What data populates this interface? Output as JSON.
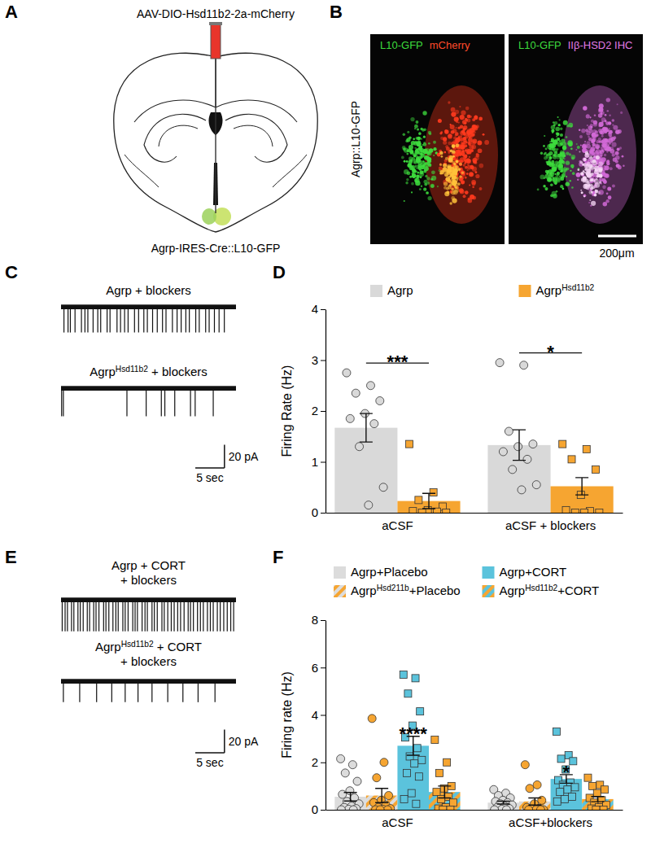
{
  "panel_a": {
    "panel": "A",
    "injection_label": "AAV-DIO-Hsd11b2-2a-mCherry",
    "mouse_label": "Agrp-IRES-Cre::L10-GFP"
  },
  "panel_b": {
    "panel": "B",
    "row_label": "Agrp::L10-GFP",
    "left": [
      "L10-GFP",
      "mCherry"
    ],
    "right": [
      "L10-GFP",
      "IIβ-HSD2 IHC"
    ],
    "scale_bar": "200μm"
  },
  "chart_data": [
    {
      "type": "trace",
      "panel": "C",
      "tick_labels": false,
      "xlim": [
        0,
        30
      ],
      "ylim": [
        -30,
        5
      ],
      "noise": 2,
      "scale_bar": {
        "x": 5,
        "x_label": "5 sec",
        "y": 20,
        "y_label": "20 pA"
      },
      "traces": [
        {
          "label": [
            "Agrp + blockers"
          ],
          "spike_amplitude": -22,
          "spike_times": [
            0.5,
            1.2,
            1.6,
            2.4,
            3.5,
            4.1,
            4.6,
            5.5,
            6.3,
            6.8,
            7.9,
            8.4,
            9.6,
            10.2,
            10.9,
            11.5,
            12.6,
            13.3,
            14.2,
            14.8,
            15.7,
            16.5,
            17.4,
            18.0,
            19.1,
            19.9,
            20.6,
            21.4,
            22.0,
            23.1,
            23.7,
            24.8,
            25.4,
            26.3,
            27.1,
            28.0
          ]
        },
        {
          "label": [
            "AgrpHsd11b2 + blockers"
          ],
          "spike_amplitude": -24,
          "spike_times": [
            0.1,
            0.4,
            11.3,
            14.6,
            17.2,
            17.8,
            19.5,
            22.2,
            23.0,
            26.1
          ]
        }
      ]
    },
    {
      "type": "bar",
      "panel": "D",
      "legend": "top",
      "y_label": "Firing Rate (Hz)",
      "categories": [
        "aCSF",
        "aCSF + blockers"
      ],
      "ylim": [
        0,
        4
      ],
      "yticks": [
        0,
        1,
        2,
        3,
        4
      ],
      "series": [
        {
          "name": "Agrp",
          "color": "#d9d9d9",
          "marker": "circle",
          "values": [
            1.67,
            1.33
          ],
          "errors": [
            0.28,
            0.3
          ],
          "points": [
            [
              2.75,
              2.5,
              2.35,
              2.2,
              1.95,
              1.85,
              1.75,
              1.3,
              0.5,
              0.15
            ],
            [
              2.95,
              2.9,
              1.6,
              1.35,
              1.3,
              1.2,
              1.05,
              0.85,
              0.55,
              0.45
            ]
          ]
        },
        {
          "name": "AgrpHsd11b2",
          "color": "#f6a531",
          "marker": "square",
          "values": [
            0.23,
            0.52
          ],
          "errors": [
            0.15,
            0.17
          ],
          "points": [
            [
              1.35,
              0.4,
              0.25,
              0.12,
              0.05,
              0.03,
              0.02,
              0,
              0
            ],
            [
              1.35,
              1.25,
              1.05,
              0.85,
              0.35,
              0.05,
              0.03,
              0,
              0,
              0
            ]
          ]
        }
      ],
      "annotations": [
        {
          "text": "***",
          "category": 0,
          "series": [
            0,
            1
          ]
        },
        {
          "text": "*",
          "category": 1,
          "series": [
            0,
            1
          ]
        }
      ]
    },
    {
      "type": "trace",
      "panel": "E",
      "tick_labels": false,
      "xlim": [
        0,
        30
      ],
      "ylim": [
        -30,
        5
      ],
      "noise": 2,
      "scale_bar": {
        "x": 5,
        "x_label": "5 sec",
        "y": 20,
        "y_label": "20 pA"
      },
      "traces": [
        {
          "label": [
            "Agrp + CORT",
            "+ blockers"
          ],
          "spike_amplitude": -27,
          "spike_times": [
            0.2,
            0.7,
            1.1,
            1.8,
            2.2,
            2.9,
            3.3,
            3.8,
            4.5,
            4.9,
            5.6,
            6.0,
            6.5,
            7.3,
            7.7,
            8.2,
            8.9,
            9.4,
            9.8,
            10.6,
            11.0,
            11.5,
            12.3,
            12.7,
            13.1,
            13.9,
            14.4,
            14.8,
            15.6,
            16.0,
            16.5,
            17.3,
            17.7,
            18.3,
            18.9,
            19.4,
            20.0,
            20.5,
            21.1,
            21.8,
            22.2,
            22.7,
            23.4,
            23.9,
            24.4,
            25.1,
            25.6,
            26.1,
            26.8,
            27.3,
            27.9,
            28.5,
            29.1,
            29.6
          ]
        },
        {
          "label": [
            "AgrpHsd11b2 + CORT",
            "+ blockers"
          ],
          "spike_amplitude": -18,
          "spike_times": [
            0.4,
            3.2,
            6.1,
            8.7,
            11.0,
            13.2,
            15.6,
            18.3,
            20.9,
            23.5,
            26.4
          ]
        }
      ]
    },
    {
      "type": "bar",
      "panel": "F",
      "legend": "top",
      "y_label": "Firing rate (Hz)",
      "categories": [
        "aCSF",
        "aCSF+blockers"
      ],
      "ylim": [
        0,
        8
      ],
      "yticks": [
        0,
        2,
        4,
        6,
        8
      ],
      "series": [
        {
          "name": "Agrp+Placebo",
          "color": "#dcdcdc",
          "marker": "circle",
          "values": [
            0.55,
            0.3
          ],
          "errors": [
            0.18,
            0.06
          ],
          "points": [
            [
              2.15,
              1.9,
              1.55,
              1.2,
              0.8,
              0.65,
              0.5,
              0.35,
              0.25,
              0.15,
              0.1,
              0.05,
              0.02,
              0,
              0
            ],
            [
              0.85,
              0.7,
              0.6,
              0.5,
              0.4,
              0.35,
              0.3,
              0.25,
              0.2,
              0.15,
              0.1,
              0.05,
              0.02,
              0,
              0
            ]
          ]
        },
        {
          "name": "AgrpHsd211b+Placebo",
          "color": "#f6a531",
          "marker": "circle",
          "line_style": "hatched",
          "values": [
            0.6,
            0.35
          ],
          "errors": [
            0.3,
            0.15
          ],
          "points": [
            [
              3.85,
              2.0,
              1.35,
              0.6,
              0.4,
              0.3,
              0.2,
              0.1,
              0.05,
              0.02,
              0,
              0,
              0
            ],
            [
              1.9,
              1.05,
              0.9,
              0.4,
              0.25,
              0.1,
              0.05,
              0.02,
              0,
              0,
              0,
              0
            ]
          ]
        },
        {
          "name": "Agrp+CORT",
          "color": "#5bc3dc",
          "marker": "square",
          "values": [
            2.7,
            1.3
          ],
          "errors": [
            0.4,
            0.18
          ],
          "points": [
            [
              5.7,
              5.55,
              4.9,
              4.15,
              3.55,
              3.05,
              2.6,
              2.25,
              2.1,
              1.95,
              1.55,
              1.4,
              0.7,
              0.45,
              0.25
            ],
            [
              3.3,
              2.3,
              2.15,
              2.05,
              1.7,
              1.25,
              1.15,
              1.05,
              0.95,
              0.85,
              0.75,
              0.55,
              0.45,
              0.35
            ]
          ]
        },
        {
          "name": "AgrpHsd11b2+CORT",
          "color": "#f6a531",
          "marker": "square",
          "line_style": "hatched",
          "values": [
            0.75,
            0.45
          ],
          "errors": [
            0.25,
            0.11
          ],
          "points": [
            [
              2.95,
              2.0,
              1.55,
              1.0,
              0.9,
              0.75,
              0.55,
              0.45,
              0.3,
              0.1,
              0.05,
              0,
              0
            ],
            [
              1.35,
              1.05,
              1.0,
              0.85,
              0.7,
              0.5,
              0.4,
              0.3,
              0.2,
              0.1,
              0.05,
              0,
              0
            ]
          ]
        }
      ],
      "annotations": [
        {
          "text": "****",
          "category": 0,
          "series": [
            2
          ]
        },
        {
          "text": "*",
          "category": 1,
          "series": [
            2
          ]
        }
      ]
    }
  ]
}
